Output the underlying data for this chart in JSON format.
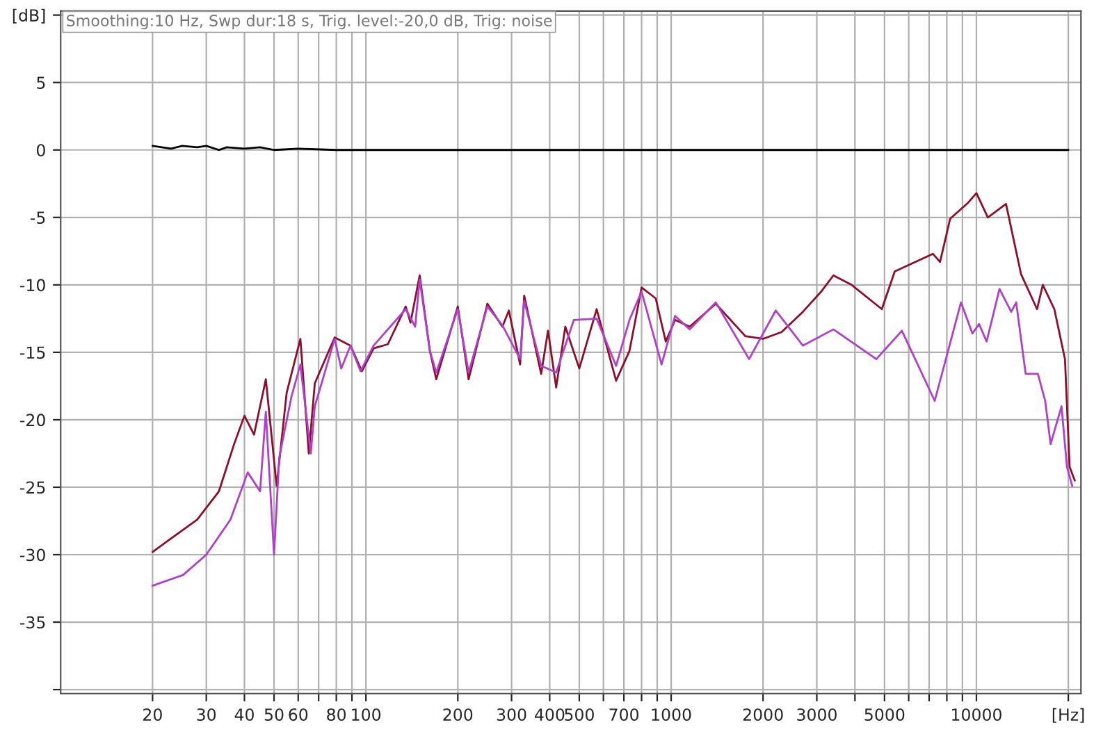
{
  "chart_data": {
    "type": "line",
    "annotations": [
      "Smoothing:10 Hz, Swp dur:18 s, Trig. level:-20,0 dB, Trig: noise"
    ],
    "log": "x",
    "grid": true,
    "line_style": "solid",
    "marker": "none",
    "xlim": [
      10,
      22000
    ],
    "ylim": [
      -40.3,
      10.3
    ],
    "xticks": [
      20,
      30,
      40,
      50,
      60,
      {
        "value": 70,
        "label": null
      },
      80,
      {
        "value": 90,
        "label": null
      },
      100,
      200,
      300,
      400,
      500,
      {
        "value": 600,
        "label": null
      },
      700,
      {
        "value": 800,
        "label": null
      },
      {
        "value": 900,
        "label": null
      },
      1000,
      2000,
      3000,
      {
        "value": 4000,
        "label": null
      },
      5000,
      {
        "value": 6000,
        "label": null
      },
      {
        "value": 7000,
        "label": null
      },
      {
        "value": 8000,
        "label": null
      },
      {
        "value": 9000,
        "label": null
      },
      10000,
      {
        "value": 20000,
        "label": "[Hz]"
      }
    ],
    "yticks": [
      {
        "value": -40,
        "label": null
      },
      -35,
      -30,
      -25,
      -20,
      -15,
      -10,
      -5,
      0,
      5,
      {
        "value": 10,
        "label": "[dB]"
      }
    ],
    "series": [
      {
        "color": "#000000",
        "x": [
          20,
          23,
          25,
          28,
          30,
          33,
          35,
          40,
          45,
          50,
          60,
          80,
          100,
          200,
          500,
          1000,
          5000,
          10000,
          20000
        ],
        "values": [
          0.3,
          0.1,
          0.3,
          0.2,
          0.3,
          0,
          0.2,
          0.1,
          0.2,
          0,
          0.1,
          0,
          0,
          0,
          0,
          0,
          0,
          0,
          0
        ]
      },
      {
        "color": "#8b0f2a",
        "x": [
          20,
          23,
          28,
          33,
          37,
          40,
          43,
          47,
          51,
          55,
          61,
          65,
          68,
          79,
          89,
          97,
          106,
          118,
          135,
          140,
          150,
          162,
          170,
          200,
          217,
          250,
          280,
          294,
          320,
          330,
          375,
          395,
          420,
          450,
          500,
          570,
          660,
          730,
          800,
          890,
          960,
          1030,
          1150,
          1400,
          1750,
          2000,
          2300,
          2700,
          3100,
          3400,
          3900,
          4900,
          5400,
          7200,
          7600,
          8200,
          9400,
          10000,
          10900,
          12500,
          14000,
          15800,
          16500,
          18000,
          19500,
          20200,
          21000
        ],
        "values": [
          -29.8,
          -28.8,
          -27.4,
          -25.3,
          -21.8,
          -19.7,
          -21.1,
          -17,
          -24.9,
          -18,
          -14,
          -22.5,
          -17.3,
          -13.9,
          -14.5,
          -16.4,
          -14.7,
          -14.4,
          -11.6,
          -12.8,
          -9.3,
          -14.9,
          -17,
          -11.6,
          -17,
          -11.4,
          -13.1,
          -11.9,
          -15.9,
          -10.8,
          -16.6,
          -13.4,
          -17.6,
          -13.1,
          -16.2,
          -11.8,
          -17.1,
          -14.9,
          -10.2,
          -11,
          -14.2,
          -12.6,
          -13.1,
          -11.4,
          -13.8,
          -14,
          -13.5,
          -12,
          -10.5,
          -9.3,
          -10,
          -11.8,
          -9,
          -7.7,
          -8.3,
          -5.1,
          -3.9,
          -3.2,
          -5,
          -4,
          -9.2,
          -11.8,
          -10,
          -11.8,
          -15.5,
          -23.5,
          -24.5
        ]
      },
      {
        "color": "#b040c8",
        "x": [
          20,
          25.2,
          30,
          36,
          41,
          45,
          47,
          50,
          52,
          57,
          61,
          66,
          68,
          79,
          83,
          89,
          96,
          106,
          135,
          145,
          150,
          162,
          170,
          200,
          217,
          250,
          280,
          320,
          330,
          375,
          420,
          480,
          570,
          660,
          730,
          800,
          930,
          1030,
          1150,
          1400,
          1800,
          2200,
          2700,
          3400,
          4700,
          5700,
          7300,
          8900,
          9700,
          10200,
          10800,
          11900,
          13000,
          13500,
          14500,
          15900,
          16800,
          17500,
          19000,
          19800,
          20600
        ],
        "values": [
          -32.3,
          -31.5,
          -30,
          -27.4,
          -23.9,
          -25.3,
          -19.4,
          -30,
          -22.8,
          -18.3,
          -15.9,
          -22.5,
          -19,
          -14,
          -16.2,
          -14.5,
          -16.4,
          -14.5,
          -11.8,
          -13.1,
          -9.6,
          -14.9,
          -16.5,
          -11.8,
          -16.5,
          -11.6,
          -13,
          -15.5,
          -11.2,
          -16,
          -16.5,
          -12.6,
          -12.5,
          -16,
          -12.6,
          -10.5,
          -15.9,
          -12.3,
          -13.3,
          -11.3,
          -15.5,
          -11.9,
          -14.5,
          -13.3,
          -15.5,
          -13.4,
          -18.6,
          -11.3,
          -13.6,
          -12.9,
          -14.2,
          -10.3,
          -12,
          -11.3,
          -16.6,
          -16.6,
          -18.6,
          -21.8,
          -19,
          -23.5,
          -24.9
        ]
      }
    ]
  }
}
